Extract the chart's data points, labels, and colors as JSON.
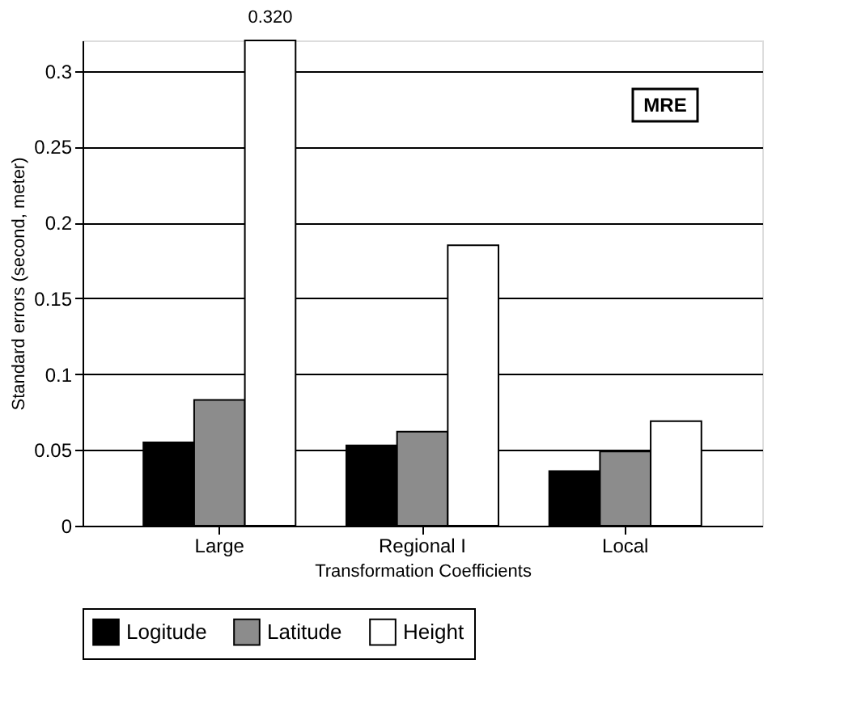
{
  "chart_data": {
    "type": "bar",
    "xlabel": "Transformation Coefficients",
    "ylabel": "Standard errors (second, meter)",
    "categories": [
      "Large",
      "Regional I",
      "Local"
    ],
    "series": [
      {
        "name": "Logitude",
        "color": "#000000",
        "values": [
          0.055,
          0.053,
          0.036
        ]
      },
      {
        "name": "Latitude",
        "color": "#8c8c8c",
        "values": [
          0.083,
          0.062,
          0.049
        ]
      },
      {
        "name": "Height",
        "color": "#ffffff",
        "values": [
          0.32,
          0.185,
          0.069
        ],
        "value_labels": [
          "0.320",
          null,
          null
        ]
      }
    ],
    "ylim": [
      0,
      0.32
    ],
    "yticks": [
      0,
      0.05,
      0.1,
      0.15,
      0.2,
      0.25,
      0.3
    ],
    "grid": "y",
    "legend": "bottom",
    "annotations": [
      "MRE"
    ]
  }
}
